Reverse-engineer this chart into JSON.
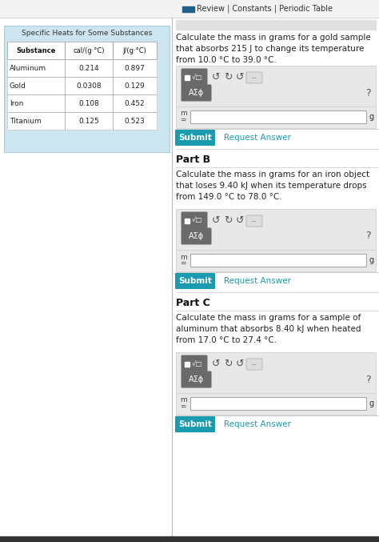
{
  "title_bar": "Review | Constants | Periodic Table",
  "table_title": "Specific Heats for Some Substances",
  "table_headers": [
    "Substance",
    "cal/(g·°C)",
    "J/(g·°C)"
  ],
  "table_rows": [
    [
      "Aluminum",
      "0.214",
      "0.897"
    ],
    [
      "Gold",
      "0.0308",
      "0.129"
    ],
    [
      "Iron",
      "0.108",
      "0.452"
    ],
    [
      "Titanium",
      "0.125",
      "0.523"
    ]
  ],
  "left_bg": "#cce5f0",
  "part_a_text": "Calculate the mass in grams for a gold sample\nthat absorbs 215 J to change its temperature\nfrom 10.0 °C to 39.0 °C.",
  "part_b_label": "Part B",
  "part_b_text": "Calculate the mass in grams for an iron object\nthat loses 9.40 kJ when its temperature drops\nfrom 149.0 °C to 78.0 °C.",
  "part_c_label": "Part C",
  "part_c_text": "Calculate the mass in grams for a sample of\naluminum that absorbs 8.40 kJ when heated\nfrom 17.0 °C to 27.4 °C.",
  "submit_bg": "#1a9bb0",
  "submit_text": "Submit",
  "request_answer_text": "Request Answer",
  "request_color": "#1a9bb0",
  "toolbar_label": "AΣϕ",
  "bg_color": "#ffffff",
  "panel_bg": "#e8e8e8",
  "icon_btn_color": "#6a6a6a",
  "divider_color": "#bbbbbb",
  "title_icon_color": "#1f5f8b",
  "text_color": "#222222",
  "bottom_bar": "#333333"
}
